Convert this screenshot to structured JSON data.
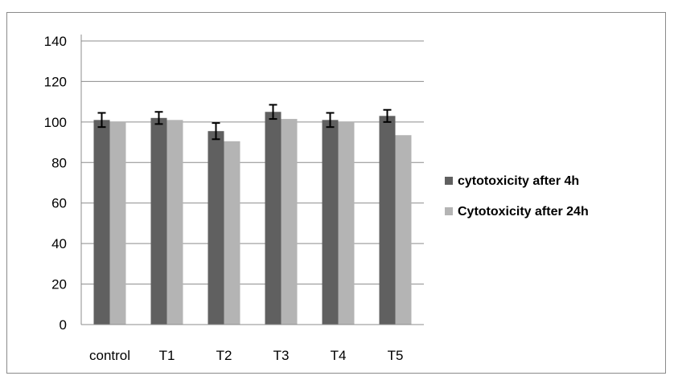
{
  "chart_data": {
    "type": "bar",
    "categories": [
      "control",
      "T1",
      "T2",
      "T3",
      "T4",
      "T5"
    ],
    "series": [
      {
        "name": "cytotoxicity after 4h",
        "values": [
          101,
          102,
          95.5,
          105,
          101,
          103
        ],
        "error": [
          3.5,
          3,
          4,
          3.5,
          3.5,
          3
        ],
        "color": "#606060"
      },
      {
        "name": "Cytotoxicity after 24h",
        "values": [
          100,
          101,
          90.5,
          101.5,
          100,
          93.5
        ],
        "color": "#b4b4b4"
      }
    ],
    "title": "",
    "xlabel": "",
    "ylabel": "",
    "ylim": [
      0,
      140
    ],
    "yticks": [
      0,
      20,
      40,
      60,
      80,
      100,
      120,
      140
    ],
    "grid": true,
    "legend": "right"
  }
}
